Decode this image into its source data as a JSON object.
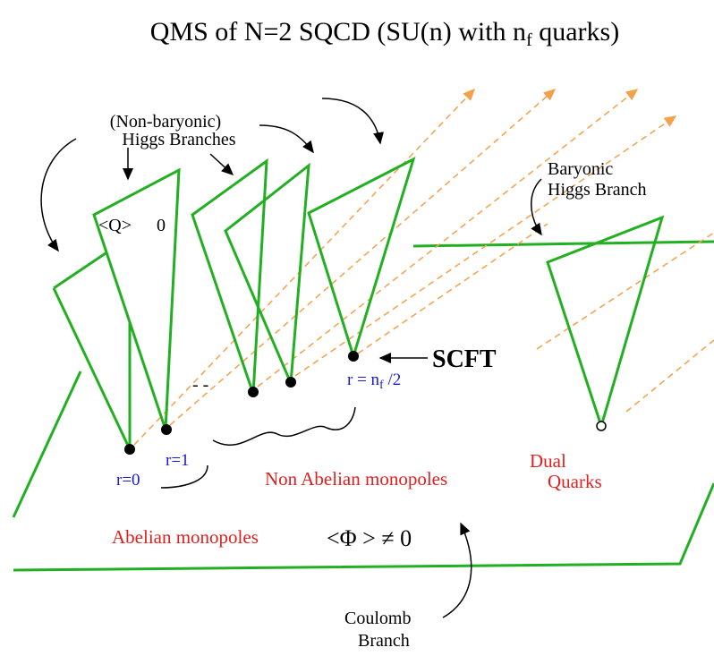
{
  "title": {
    "before": "QMS of N=2 SQCD  (SU(n) with n",
    "sub": "f",
    "after": "  quarks)"
  },
  "labels": {
    "non_baryonic": "(Non-baryonic)",
    "higgs_branches": "Higgs Branches",
    "q_vev": "<Q>",
    "q_zero": "0",
    "baryonic": "Baryonic",
    "higgs_branch": "Higgs Branch",
    "dots": "- -",
    "scft": "SCFT",
    "r_nf": {
      "before": "r = n",
      "sub": "f",
      "after": " /2"
    },
    "r0": "r=0",
    "r1": "r=1",
    "non_abelian": "Non Abelian monopoles",
    "dual": "Dual",
    "quarks": "Quarks",
    "abelian": "Abelian monopoles",
    "phi_vev": "<Φ > ≠ 0",
    "coulomb": "Coulomb",
    "branch": "Branch"
  }
}
